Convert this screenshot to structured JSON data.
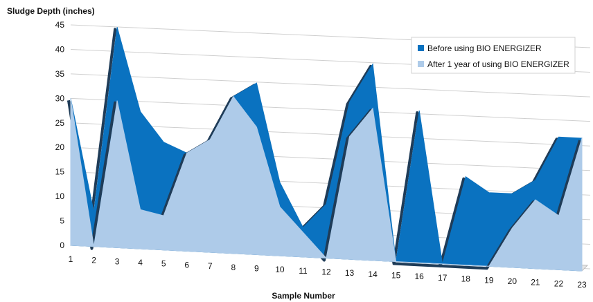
{
  "chart_data": {
    "type": "area",
    "title": "",
    "ylabel": "Sludge Depth (inches)",
    "xlabel": "Sample Number",
    "ylim": [
      0,
      45
    ],
    "yticks": [
      "0",
      "5",
      "10",
      "15",
      "20",
      "25",
      "30",
      "35",
      "40",
      "45"
    ],
    "categories": [
      "1",
      "2",
      "3",
      "4",
      "5",
      "6",
      "7",
      "8",
      "9",
      "10",
      "11",
      "12",
      "13",
      "14",
      "15",
      "16",
      "17",
      "18",
      "19",
      "20",
      "21",
      "22",
      "23"
    ],
    "grid": true,
    "legend_position": "top-right",
    "series": [
      {
        "name": "Before using BIO ENERGIZER",
        "color": "#0a72c0",
        "values": [
          30,
          7,
          45,
          28,
          22,
          20,
          23,
          32,
          35,
          15,
          6,
          11,
          32,
          40,
          0,
          31,
          0,
          18,
          15,
          15,
          18,
          27,
          27
        ]
      },
      {
        "name": "After 1 year of using BIO ENERGIZER",
        "color": "#aecbe9",
        "values": [
          30,
          0,
          30,
          8,
          7,
          20,
          23,
          32,
          26,
          10,
          5,
          0,
          25,
          31,
          0,
          0,
          0,
          0,
          0,
          8,
          14,
          11,
          27
        ]
      }
    ]
  }
}
